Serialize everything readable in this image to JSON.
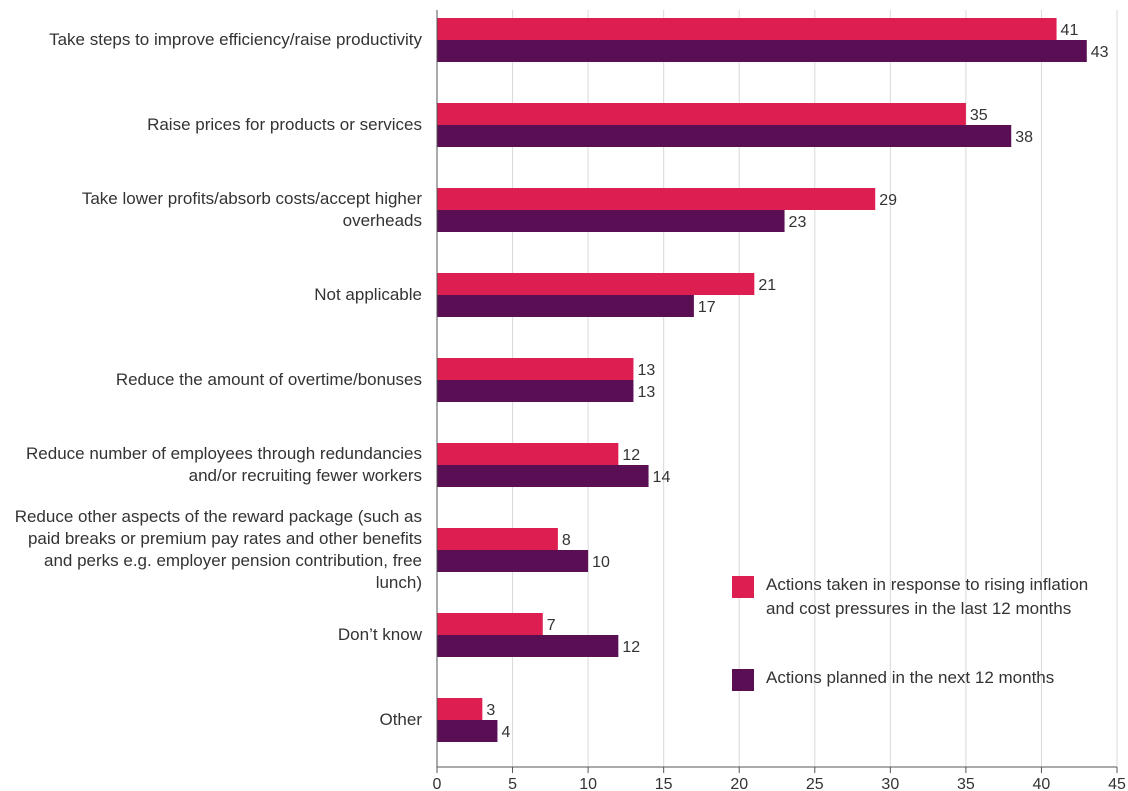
{
  "chart_data": {
    "type": "hbar",
    "categories": [
      "Take steps to improve efficiency/raise productivity",
      "Raise prices for products or services",
      "Take lower profits/absorb costs/accept higher overheads",
      "Not applicable",
      "Reduce the amount of overtime/bonuses",
      "Reduce number of employees through redundancies and/or recruiting fewer workers",
      "Reduce other aspects of the reward package (such as paid breaks or premium pay rates and other benefits and perks e.g. employer pension contribution, free lunch)",
      "Don’t know",
      "Other"
    ],
    "series": [
      {
        "name": "Actions taken in response to rising inflation and cost pressures in the last 12 months",
        "color": "#dc1f50",
        "values": [
          41,
          35,
          29,
          21,
          13,
          12,
          8,
          7,
          3
        ]
      },
      {
        "name": "Actions planned in the next 12 months",
        "color": "#5a0f55",
        "values": [
          43,
          38,
          23,
          17,
          13,
          14,
          10,
          12,
          4
        ]
      }
    ],
    "xlim": [
      0,
      45
    ],
    "xticks": [
      0,
      5,
      10,
      15,
      20,
      25,
      30,
      35,
      40,
      45
    ],
    "grid": true
  }
}
